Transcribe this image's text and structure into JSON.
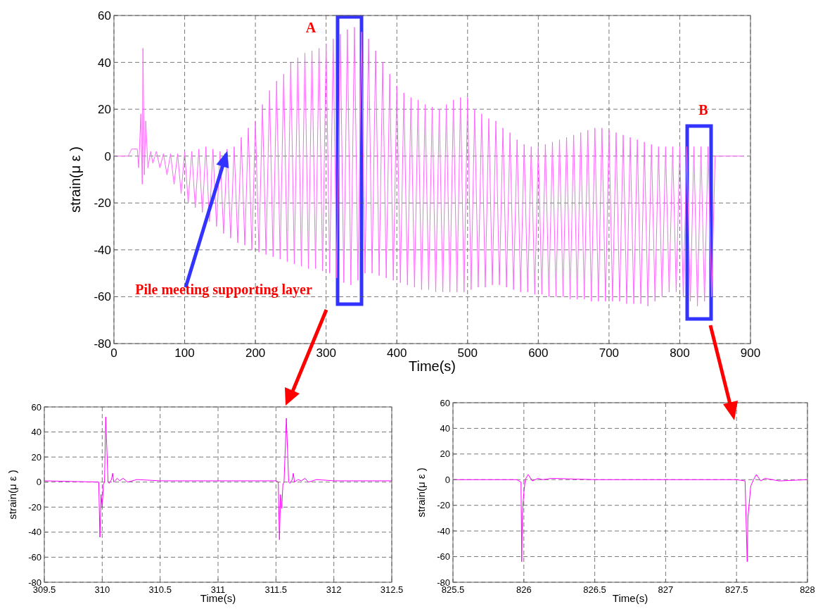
{
  "chart_data": [
    {
      "type": "line",
      "xlabel": "Time(s)",
      "ylabel": "strain(μ ε )",
      "xlim": [
        0,
        900
      ],
      "xticks": [
        0,
        100,
        200,
        300,
        400,
        500,
        600,
        700,
        800,
        900
      ],
      "ylim": [
        -80,
        60
      ],
      "yticks": [
        -80,
        -60,
        -40,
        -20,
        0,
        20,
        40,
        60
      ],
      "grid": true,
      "annotations": [
        "A",
        "B",
        {
          "text": "Pile meeting supporting layer",
          "x": 160,
          "y": 2
        }
      ],
      "series": [
        {
          "color": "#ff66ff",
          "x": [
            0,
            20,
            25,
            33,
            35,
            38,
            40,
            41,
            43,
            45,
            48,
            52,
            55,
            60,
            65,
            70,
            75,
            80,
            85,
            90,
            95,
            100,
            105,
            110,
            115,
            120,
            125,
            130,
            135,
            140,
            145,
            150,
            155,
            160,
            165,
            170,
            175,
            180,
            185,
            190,
            195,
            200,
            205,
            210,
            215,
            220,
            225,
            230,
            235,
            240,
            245,
            250,
            255,
            260,
            265,
            270,
            275,
            280,
            285,
            290,
            295,
            300,
            305,
            310,
            315,
            320,
            325,
            330,
            335,
            340,
            345,
            350,
            355,
            360,
            365,
            370,
            375,
            380,
            385,
            390,
            395,
            400,
            405,
            410,
            415,
            420,
            425,
            430,
            435,
            440,
            445,
            450,
            455,
            460,
            465,
            470,
            475,
            480,
            485,
            490,
            495,
            500,
            505,
            510,
            515,
            520,
            525,
            530,
            535,
            540,
            545,
            550,
            555,
            560,
            565,
            570,
            575,
            580,
            585,
            590,
            595,
            600,
            605,
            610,
            615,
            620,
            625,
            630,
            635,
            640,
            645,
            650,
            655,
            660,
            665,
            670,
            675,
            680,
            685,
            690,
            695,
            700,
            705,
            710,
            715,
            720,
            725,
            730,
            735,
            740,
            745,
            750,
            755,
            760,
            765,
            770,
            775,
            780,
            785,
            790,
            795,
            800,
            805,
            810,
            815,
            820,
            825,
            830,
            835,
            840,
            845,
            850,
            890
          ],
          "values": [
            0,
            0,
            3,
            3,
            -5,
            18,
            -12,
            46,
            -8,
            15,
            -5,
            2,
            -3,
            2,
            -5,
            1,
            -8,
            1,
            -12,
            1,
            -16,
            2,
            -20,
            2,
            -22,
            3,
            -24,
            4,
            -28,
            3,
            -30,
            2,
            -33,
            3,
            -35,
            4,
            -37,
            8,
            -38,
            12,
            -40,
            15,
            -41,
            22,
            -42,
            28,
            -43,
            32,
            -44,
            35,
            -45,
            40,
            -46,
            42,
            -47,
            44,
            -48,
            45,
            -48,
            46,
            -49,
            48,
            -50,
            50,
            -52,
            52,
            -54,
            54,
            -55,
            55,
            -53,
            53,
            -50,
            50,
            -50,
            45,
            -51,
            40,
            -52,
            35,
            -53,
            30,
            -54,
            27,
            -55,
            25,
            -56,
            24,
            -57,
            22,
            -57,
            21,
            -58,
            20,
            -58,
            22,
            -58,
            24,
            -58,
            25,
            -58,
            25,
            -57,
            20,
            -56,
            18,
            -56,
            16,
            -55,
            15,
            -55,
            12,
            -56,
            10,
            -57,
            7,
            -58,
            5,
            -58,
            4,
            -59,
            4,
            -59,
            5,
            -60,
            6,
            -60,
            7,
            -60,
            8,
            -61,
            9,
            -61,
            10,
            -61,
            11,
            -62,
            12,
            -62,
            12,
            -62,
            11,
            -62,
            10,
            -62,
            9,
            -63,
            8,
            -63,
            7,
            -63,
            6,
            -64,
            5,
            -62,
            4,
            -60,
            4,
            -58,
            4,
            -58,
            4,
            -60,
            4,
            -62,
            4,
            -64,
            4,
            -62,
            4,
            -60,
            0,
            0
          ]
        }
      ]
    },
    {
      "type": "line",
      "xlabel": "Time(s)",
      "ylabel": "strain(μ ε )",
      "xlim": [
        309.5,
        312.5
      ],
      "xticks": [
        309.5,
        310,
        310.5,
        311,
        311.5,
        312,
        312.5
      ],
      "ylim": [
        -80,
        60
      ],
      "yticks": [
        -80,
        -60,
        -40,
        -20,
        0,
        20,
        40,
        60
      ],
      "grid": true,
      "series": [
        {
          "color": "#ff00ff",
          "x": [
            309.5,
            309.97,
            309.98,
            309.99,
            310,
            310.01,
            310.02,
            310.03,
            310.05,
            310.06,
            310.08,
            310.09,
            310.1,
            310.13,
            310.15,
            310.18,
            310.22,
            310.3,
            310.5,
            311.5,
            311.52,
            311.53,
            311.54,
            311.55,
            311.56,
            311.57,
            311.59,
            311.61,
            311.62,
            311.64,
            311.65,
            311.66,
            311.69,
            311.72,
            311.75,
            311.78,
            311.85,
            312,
            312.5
          ],
          "values": [
            1,
            0,
            -44,
            -10,
            -20,
            -2,
            0,
            52,
            0,
            -1,
            2,
            7,
            0,
            3,
            1,
            3,
            0,
            2,
            1,
            1,
            0,
            -46,
            -10,
            -21,
            -2,
            0,
            51,
            0,
            -1,
            2,
            7,
            0,
            2,
            1,
            3,
            0,
            2,
            1,
            1
          ]
        }
      ]
    },
    {
      "type": "line",
      "xlabel": "Time(s)",
      "ylabel": "strain(μ ε )",
      "xlim": [
        825.5,
        828
      ],
      "xticks": [
        825.5,
        826,
        826.5,
        827,
        827.5,
        828
      ],
      "ylim": [
        -80,
        60
      ],
      "yticks": [
        -80,
        -60,
        -40,
        -20,
        0,
        20,
        40,
        60
      ],
      "grid": true,
      "series": [
        {
          "color": "#ff00ff",
          "x": [
            825.5,
            825.95,
            825.98,
            825.985,
            825.99,
            826,
            826.01,
            826.03,
            826.06,
            826.1,
            826.13,
            826.2,
            826.5,
            827.5,
            827.56,
            827.575,
            827.58,
            827.6,
            827.62,
            827.64,
            827.67,
            827.7,
            827.75,
            827.8,
            828
          ],
          "values": [
            0,
            0,
            -2,
            -64,
            -25,
            -10,
            0,
            4,
            -1,
            1,
            0,
            1,
            0,
            0,
            -1,
            -64,
            -30,
            -5,
            0,
            4,
            -1,
            1,
            0,
            -1,
            0
          ]
        }
      ]
    }
  ]
}
